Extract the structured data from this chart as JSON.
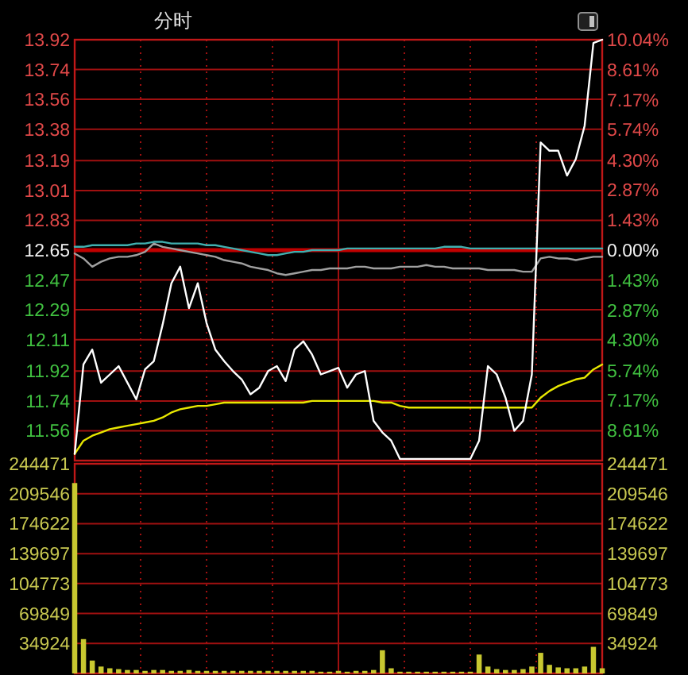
{
  "chart_data": [
    {
      "type": "line",
      "title": "分时",
      "categories": [
        null,
        null,
        null,
        null,
        null,
        null,
        null,
        null,
        null,
        null,
        null,
        null,
        null,
        null,
        null,
        null,
        null,
        null,
        null,
        null,
        null,
        null,
        null,
        null,
        null,
        null,
        null,
        null,
        null,
        null,
        null,
        null,
        null,
        null,
        null,
        null,
        null,
        null,
        null,
        null,
        null,
        null,
        null,
        null,
        null,
        null,
        null,
        null,
        null,
        null,
        null,
        null,
        null,
        null,
        null,
        null,
        null,
        null,
        null,
        null,
        null
      ],
      "series": [
        {
          "color": "#40b0b0",
          "values": [
            12.67,
            12.67,
            12.68,
            12.68,
            12.68,
            12.68,
            12.68,
            12.69,
            12.69,
            12.7,
            12.7,
            12.69,
            12.69,
            12.69,
            12.69,
            12.68,
            12.68,
            12.67,
            12.66,
            12.65,
            12.64,
            12.63,
            12.62,
            12.62,
            12.63,
            12.64,
            12.64,
            12.65,
            12.65,
            12.65,
            12.65,
            12.66,
            12.66,
            12.66,
            12.66,
            12.66,
            12.66,
            12.66,
            12.66,
            12.66,
            12.66,
            12.66,
            12.67,
            12.67,
            12.67,
            12.66,
            12.66,
            12.66,
            12.66,
            12.66,
            12.66,
            12.66,
            12.66,
            12.66,
            12.66,
            12.66,
            12.66,
            12.66,
            12.66,
            12.66,
            12.66
          ]
        },
        {
          "color": "#a0a0a0",
          "values": [
            12.63,
            12.6,
            12.55,
            12.58,
            12.6,
            12.61,
            12.61,
            12.62,
            12.64,
            12.69,
            12.67,
            12.66,
            12.65,
            12.64,
            12.63,
            12.62,
            12.61,
            12.59,
            12.58,
            12.57,
            12.55,
            12.54,
            12.53,
            12.51,
            12.5,
            12.51,
            12.52,
            12.53,
            12.53,
            12.54,
            12.54,
            12.54,
            12.55,
            12.55,
            12.54,
            12.54,
            12.54,
            12.55,
            12.55,
            12.55,
            12.56,
            12.55,
            12.55,
            12.54,
            12.54,
            12.54,
            12.54,
            12.53,
            12.53,
            12.53,
            12.53,
            12.52,
            12.52,
            12.6,
            12.61,
            12.6,
            12.6,
            12.59,
            12.6,
            12.61,
            12.61
          ]
        },
        {
          "color": "#e8e800",
          "values": [
            11.42,
            11.5,
            11.53,
            11.55,
            11.57,
            11.58,
            11.59,
            11.6,
            11.61,
            11.62,
            11.64,
            11.67,
            11.69,
            11.7,
            11.71,
            11.71,
            11.72,
            11.73,
            11.73,
            11.73,
            11.73,
            11.73,
            11.73,
            11.73,
            11.73,
            11.73,
            11.73,
            11.74,
            11.74,
            11.74,
            11.74,
            11.74,
            11.74,
            11.74,
            11.74,
            11.73,
            11.73,
            11.71,
            11.7,
            11.7,
            11.7,
            11.7,
            11.7,
            11.7,
            11.7,
            11.7,
            11.7,
            11.7,
            11.7,
            11.7,
            11.7,
            11.7,
            11.7,
            11.76,
            11.8,
            11.83,
            11.85,
            11.87,
            11.88,
            11.93,
            11.96
          ]
        },
        {
          "color": "#ffffff",
          "values": [
            11.42,
            11.96,
            12.05,
            11.85,
            11.9,
            11.95,
            11.85,
            11.75,
            11.93,
            11.98,
            12.2,
            12.45,
            12.55,
            12.3,
            12.45,
            12.21,
            12.05,
            11.98,
            11.92,
            11.87,
            11.78,
            11.82,
            11.92,
            11.95,
            11.86,
            12.05,
            12.1,
            12.02,
            11.9,
            11.92,
            11.94,
            11.82,
            11.9,
            11.92,
            11.62,
            11.55,
            11.5,
            11.39,
            11.39,
            11.39,
            11.39,
            11.39,
            11.39,
            11.39,
            11.39,
            11.39,
            11.5,
            11.95,
            11.9,
            11.76,
            11.56,
            11.62,
            11.9,
            13.3,
            13.25,
            13.25,
            13.1,
            13.2,
            13.4,
            13.9,
            13.92
          ]
        }
      ],
      "ylim": [
        11.38,
        13.92
      ],
      "yticks": [
        13.92,
        13.74,
        13.56,
        13.38,
        13.19,
        13.01,
        12.83,
        12.65,
        12.47,
        12.29,
        12.11,
        11.92,
        11.74,
        11.56
      ],
      "y2lim": [
        -10.04,
        10.04
      ],
      "y2ticks": [
        {
          "value": 10.04,
          "label": "10.04%"
        },
        {
          "value": 8.61,
          "label": "8.61%"
        },
        {
          "value": 7.17,
          "label": "7.17%"
        },
        {
          "value": 5.74,
          "label": "5.74%"
        },
        {
          "value": 4.3,
          "label": "4.30%"
        },
        {
          "value": 2.87,
          "label": "2.87%"
        },
        {
          "value": 1.43,
          "label": "1.43%"
        },
        {
          "value": 0,
          "label": "0.00%"
        },
        {
          "value": -1.43,
          "label": "1.43%"
        },
        {
          "value": -2.87,
          "label": "2.87%"
        },
        {
          "value": -4.3,
          "label": "4.30%"
        },
        {
          "value": -5.74,
          "label": "5.74%"
        },
        {
          "value": -7.17,
          "label": "7.17%"
        },
        {
          "value": -8.61,
          "label": "8.61%"
        }
      ],
      "ref_lines": [
        {
          "axis": "y",
          "value": 12.65,
          "color": "#c00000"
        }
      ],
      "grid": true,
      "tick_labels": "y"
    },
    {
      "type": "bar",
      "categories": [
        null,
        null,
        null,
        null,
        null,
        null,
        null,
        null,
        null,
        null,
        null,
        null,
        null,
        null,
        null,
        null,
        null,
        null,
        null,
        null,
        null,
        null,
        null,
        null,
        null,
        null,
        null,
        null,
        null,
        null,
        null,
        null,
        null,
        null,
        null,
        null,
        null,
        null,
        null,
        null,
        null,
        null,
        null,
        null,
        null,
        null,
        null,
        null,
        null,
        null,
        null,
        null,
        null,
        null,
        null,
        null,
        null,
        null,
        null,
        null,
        null
      ],
      "color": "#c8c830",
      "values": [
        222000,
        40000,
        15000,
        8000,
        6000,
        5000,
        4000,
        4000,
        3000,
        4000,
        4000,
        3000,
        3000,
        4000,
        3000,
        3000,
        3000,
        3000,
        3000,
        3000,
        3000,
        3000,
        3000,
        3000,
        3000,
        3000,
        3000,
        3000,
        2000,
        2000,
        3000,
        2000,
        3000,
        3000,
        4000,
        27000,
        6000,
        2000,
        2000,
        2000,
        2000,
        2000,
        2000,
        2000,
        2000,
        2000,
        22000,
        8000,
        5000,
        4000,
        4000,
        5000,
        8000,
        24000,
        10000,
        7000,
        6000,
        6000,
        8000,
        31000,
        6000
      ],
      "ylim": [
        0,
        244471
      ],
      "yticks": [
        244471,
        209546,
        174622,
        139697,
        104773,
        69849,
        34924
      ],
      "y2lim": [
        0,
        244471
      ],
      "y2ticks": [
        244471,
        209546,
        174622,
        139697,
        104773,
        69849,
        34924
      ],
      "grid": true,
      "tick_labels": "y"
    }
  ]
}
